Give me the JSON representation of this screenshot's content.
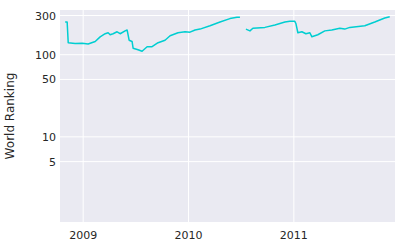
{
  "chart_data": {
    "type": "line",
    "y_label": "World Ranking",
    "color": "#00ced1",
    "log": "y",
    "grid": true,
    "x": [
      2008.829,
      2008.848,
      2008.858,
      2008.924,
      2008.991,
      2009.047,
      2009.114,
      2009.161,
      2009.209,
      2009.237,
      2009.256,
      2009.284,
      2009.322,
      2009.351,
      2009.398,
      2009.417,
      2009.436,
      2009.464,
      2009.474,
      2009.521,
      2009.559,
      2009.607,
      2009.654,
      2009.711,
      2009.777,
      2009.825,
      2009.9,
      2009.967,
      2010.014,
      2010.062,
      2010.109,
      2010.204,
      2010.299,
      2010.393,
      2010.46,
      2010.488,
      2010.52,
      2010.545,
      2010.583,
      2010.611,
      2010.725,
      2010.82,
      2010.915,
      2010.962,
      2011.009,
      2011.019,
      2011.038,
      2011.076,
      2011.114,
      2011.152,
      2011.171,
      2011.227,
      2011.294,
      2011.36,
      2011.436,
      2011.483,
      2011.531,
      2011.673,
      2011.768,
      2011.863,
      2011.91
    ],
    "values": [
      250,
      250,
      140,
      137,
      138,
      135,
      145,
      165,
      180,
      185,
      175,
      180,
      190,
      180,
      195,
      200,
      150,
      145,
      120,
      115,
      110,
      125,
      125,
      140,
      150,
      170,
      185,
      190,
      188,
      200,
      205,
      225,
      250,
      275,
      285,
      285,
      null,
      205,
      195,
      210,
      215,
      230,
      250,
      255,
      255,
      240,
      185,
      190,
      180,
      185,
      165,
      175,
      195,
      200,
      210,
      205,
      215,
      225,
      250,
      280,
      290
    ],
    "xlim": [
      2008.78,
      2011.96
    ],
    "xticks": [
      2009,
      2010,
      2011
    ],
    "ylim": [
      0.92,
      350
    ],
    "yticks": [
      5,
      10,
      50,
      100,
      300
    ]
  }
}
